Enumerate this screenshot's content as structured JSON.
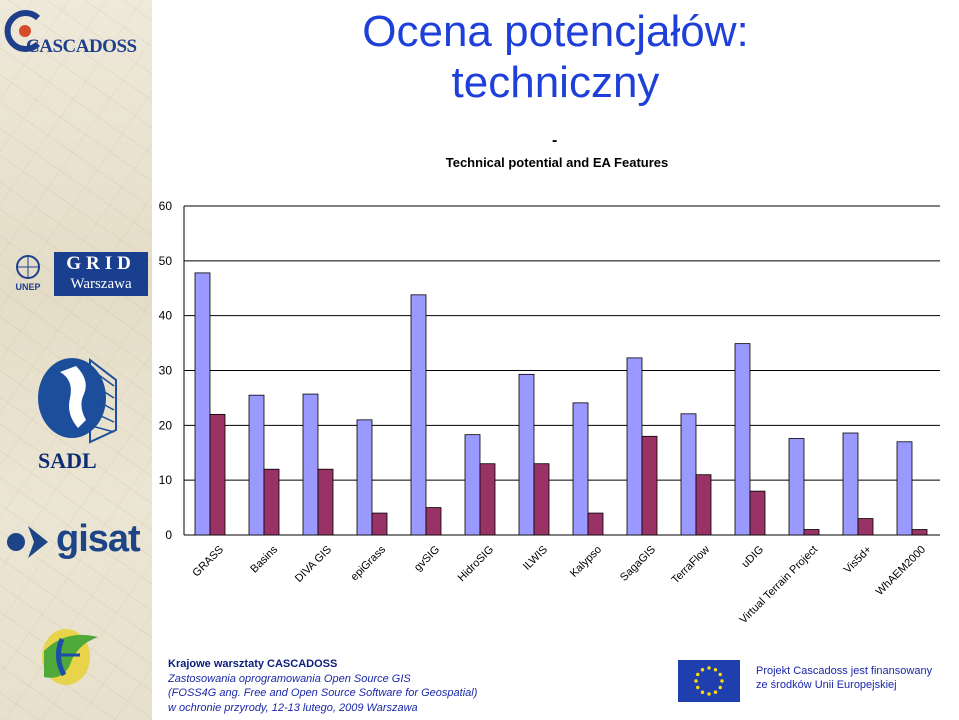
{
  "slide": {
    "title_line1": "Ocena potencjałów:",
    "title_line2": "techniczny"
  },
  "logos": {
    "cascadoss": "CASCADOSS",
    "grid_top": "GRID",
    "grid_bottom": "Warszawa",
    "unep": "UNEP",
    "sadl": "SADL",
    "gisat": "gisat"
  },
  "footer": {
    "line1": "Krajowe warsztaty CASCADOSS",
    "line2": "Zastosowania oprogramowania Open Source GIS",
    "line3": "(FOSS4G ang. Free and Open Source Software for Geospatial)",
    "line4": "w ochronie przyrody, 12-13 lutego, 2009 Warszawa",
    "funding_line1": "Projekt Cascadoss jest finansowany",
    "funding_line2": "ze środków Unii Europejskiej"
  },
  "colors": {
    "title": "#1f40d8",
    "series1": "#9999ff",
    "series2": "#993366",
    "plot_bg": "#ffffff",
    "footer_text": "#1a27a8"
  },
  "chart_data": {
    "type": "bar",
    "title": "Technical potential and EA Features",
    "dash": "-",
    "categories": [
      "GRASS",
      "Basins",
      "DIVA GIS",
      "epiGrass",
      "gvSIG",
      "HidroSIG",
      "ILWIS",
      "Kalypso",
      "SagaGIS",
      "TerraFlow",
      "uDIG",
      "Virtual Terrain Project",
      "Vis5d+",
      "WhAEM2000"
    ],
    "series": [
      {
        "values": [
          47.8,
          25.5,
          25.7,
          21.0,
          43.8,
          18.3,
          29.3,
          24.1,
          32.3,
          22.1,
          34.9,
          17.6,
          18.6,
          17.0
        ]
      },
      {
        "values": [
          22.0,
          12.0,
          12.0,
          4.0,
          5.0,
          13.0,
          13.0,
          4.0,
          18.0,
          11.0,
          8.0,
          1.0,
          3.0,
          1.0
        ]
      }
    ],
    "ylim": [
      0,
      60
    ],
    "yticks": [
      0,
      10,
      20,
      30,
      40,
      50,
      60
    ],
    "grid": true,
    "legend": "none"
  }
}
